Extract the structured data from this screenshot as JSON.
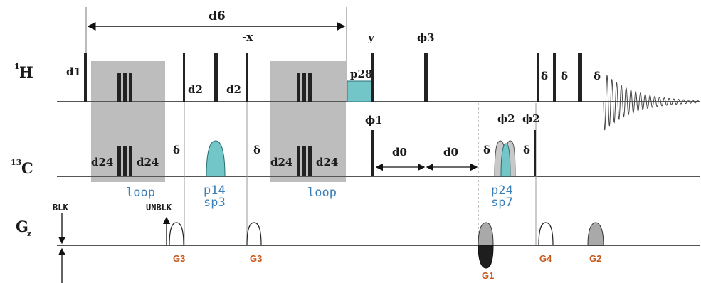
{
  "channels": {
    "h": "1H",
    "c": "13C",
    "g": "Gz"
  },
  "channel_labels": {
    "h_sup": "1",
    "h_main": "H",
    "c_sup": "13",
    "c_main": "C",
    "g_main": "G",
    "g_sub": "z"
  },
  "delays": {
    "d1": "d1",
    "d2a": "d2",
    "d2b": "d2",
    "d24a": "d24",
    "d24b": "d24",
    "d24c": "d24",
    "d24d": "d24",
    "d0a": "d0",
    "d0b": "d0",
    "d6": "d6"
  },
  "phases": {
    "minus_x": "-x",
    "y": "y",
    "phi1": "ϕ1",
    "phi2a": "ϕ2",
    "phi2b": "ϕ2",
    "phi3": "ϕ3"
  },
  "pulses": {
    "p28": "p28",
    "p14": "p14",
    "sp3": "sp3",
    "p24": "p24",
    "sp7": "sp7"
  },
  "delta": "δ",
  "loop": {
    "first": "loop",
    "second": "loop"
  },
  "gradients": {
    "g3a": "G3",
    "g3b": "G3",
    "g1": "G1",
    "g4": "G4",
    "g2": "G2"
  },
  "markers": {
    "blk": "BLK",
    "unblk": "UNBLK"
  },
  "colors": {
    "cyan_pulse": "#72c6c8",
    "gray_box": "#bdbdbd",
    "gradient_fill": "#a9a9a9",
    "blue_text": "#3a7fb8",
    "orange_text": "#c6571a"
  }
}
